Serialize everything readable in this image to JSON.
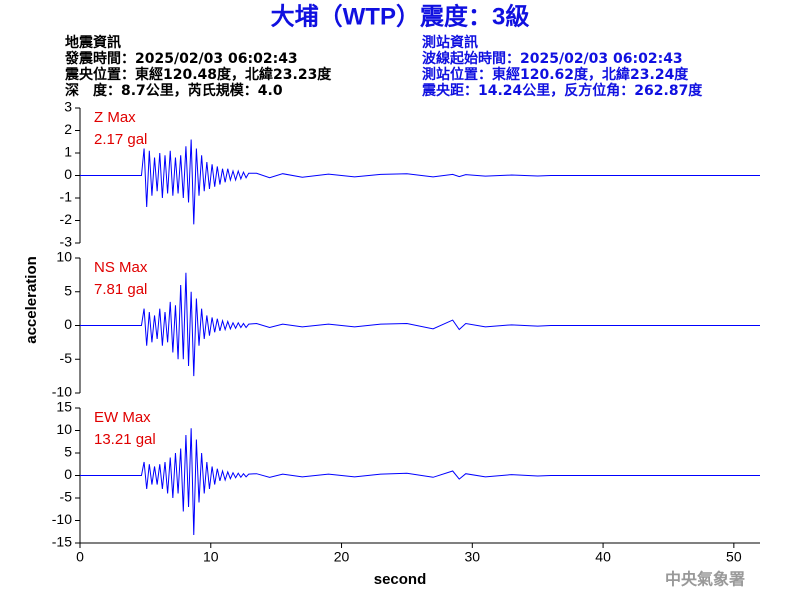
{
  "header": {
    "title": "大埔（WTP）震度：3級",
    "left": [
      "地震資訊",
      "發震時間：2025/02/03 06:02:43",
      "震央位置：東經120.48度，北緯23.23度",
      "深　度：8.7公里，芮氏規模：4.0"
    ],
    "right": [
      "測站資訊",
      "波線起始時間：2025/02/03 06:02:43",
      "測站位置：東經120.62度，北緯23.24度",
      "震央距：14.24公里，反方位角：262.87度"
    ]
  },
  "footer": "中央氣象署",
  "chart_data": {
    "type": "line",
    "xlabel": "second",
    "ylabel": "acceleration",
    "xlim": [
      0,
      52
    ],
    "xticks": [
      0,
      10,
      20,
      30,
      40,
      50
    ],
    "x": [
      0,
      4.7,
      4.9,
      5.1,
      5.3,
      5.5,
      5.7,
      5.9,
      6.1,
      6.3,
      6.5,
      6.7,
      6.9,
      7.1,
      7.3,
      7.5,
      7.7,
      7.9,
      8.1,
      8.3,
      8.5,
      8.7,
      8.9,
      9.1,
      9.3,
      9.5,
      9.7,
      9.9,
      10.1,
      10.3,
      10.5,
      10.7,
      10.9,
      11.1,
      11.3,
      11.5,
      11.7,
      11.9,
      12.1,
      12.3,
      12.5,
      12.7,
      12.9,
      13.5,
      14.5,
      15.5,
      17,
      19,
      21,
      23,
      25,
      27,
      28.5,
      29,
      29.5,
      31,
      33,
      35,
      36,
      52
    ],
    "series": [
      {
        "name": "Z Max",
        "value_label": "2.17 gal",
        "color": "#0000ff",
        "label_color": "#e00000",
        "ylim": [
          -3,
          3
        ],
        "yticks": [
          -3,
          -2,
          -1,
          0,
          1,
          2,
          3
        ],
        "values": [
          0,
          0,
          1.2,
          -1.4,
          1.1,
          -0.9,
          0.8,
          -0.7,
          1.0,
          -1.0,
          0.9,
          -0.8,
          1.1,
          -0.9,
          0.8,
          -0.8,
          0.9,
          -1.0,
          1.3,
          -1.2,
          1.6,
          -2.17,
          1.2,
          -0.9,
          0.9,
          -0.7,
          0.6,
          -0.6,
          0.5,
          -0.5,
          0.4,
          -0.4,
          0.3,
          -0.3,
          0.3,
          -0.2,
          0.2,
          -0.2,
          0.2,
          -0.15,
          0.15,
          -0.1,
          0.1,
          0.1,
          -0.1,
          0.08,
          -0.08,
          0.06,
          -0.06,
          0.05,
          0.08,
          -0.06,
          0.05,
          -0.05,
          0.04,
          -0.03,
          0.02,
          -0.02,
          0,
          0
        ]
      },
      {
        "name": "NS Max",
        "value_label": "7.81 gal",
        "color": "#0000ff",
        "label_color": "#e00000",
        "ylim": [
          -10,
          10
        ],
        "yticks": [
          -10,
          -5,
          0,
          5,
          10
        ],
        "values": [
          0,
          0,
          2.5,
          -3,
          2,
          -2.5,
          1.5,
          -2,
          2.5,
          -3,
          2,
          -2.5,
          3.5,
          -4,
          3,
          -5,
          6,
          -5,
          7.81,
          -6,
          5,
          -7.5,
          4,
          -3,
          2.5,
          -2,
          1.5,
          -1.5,
          1.2,
          -1,
          1,
          -0.8,
          0.7,
          -0.6,
          0.6,
          -0.5,
          0.4,
          -0.4,
          0.4,
          -0.3,
          0.3,
          -0.3,
          0.2,
          0.3,
          -0.3,
          0.2,
          -0.2,
          0.2,
          -0.2,
          0.2,
          0.3,
          -0.5,
          0.8,
          -0.6,
          0.3,
          -0.2,
          0.1,
          -0.1,
          0,
          0
        ]
      },
      {
        "name": "EW Max",
        "value_label": "13.21 gal",
        "color": "#0000ff",
        "label_color": "#e00000",
        "ylim": [
          -15,
          15
        ],
        "yticks": [
          -15,
          -10,
          -5,
          0,
          5,
          10,
          15
        ],
        "values": [
          0,
          0,
          3,
          -3,
          2.5,
          -2,
          2,
          -2,
          2.5,
          -3,
          3,
          -4,
          4,
          -5,
          5,
          -4,
          6,
          -8,
          9,
          -7,
          10.5,
          -13.21,
          8,
          -6,
          5,
          -4,
          3,
          -3,
          2,
          -2,
          1.5,
          -1.2,
          1,
          -1,
          0.8,
          -0.7,
          0.6,
          -0.5,
          0.5,
          -0.4,
          0.4,
          -0.3,
          0.3,
          0.4,
          -0.4,
          0.3,
          -0.3,
          0.3,
          -0.3,
          0.3,
          0.5,
          -0.4,
          1,
          -0.8,
          0.4,
          -0.3,
          0.2,
          -0.1,
          0,
          0
        ]
      }
    ]
  }
}
